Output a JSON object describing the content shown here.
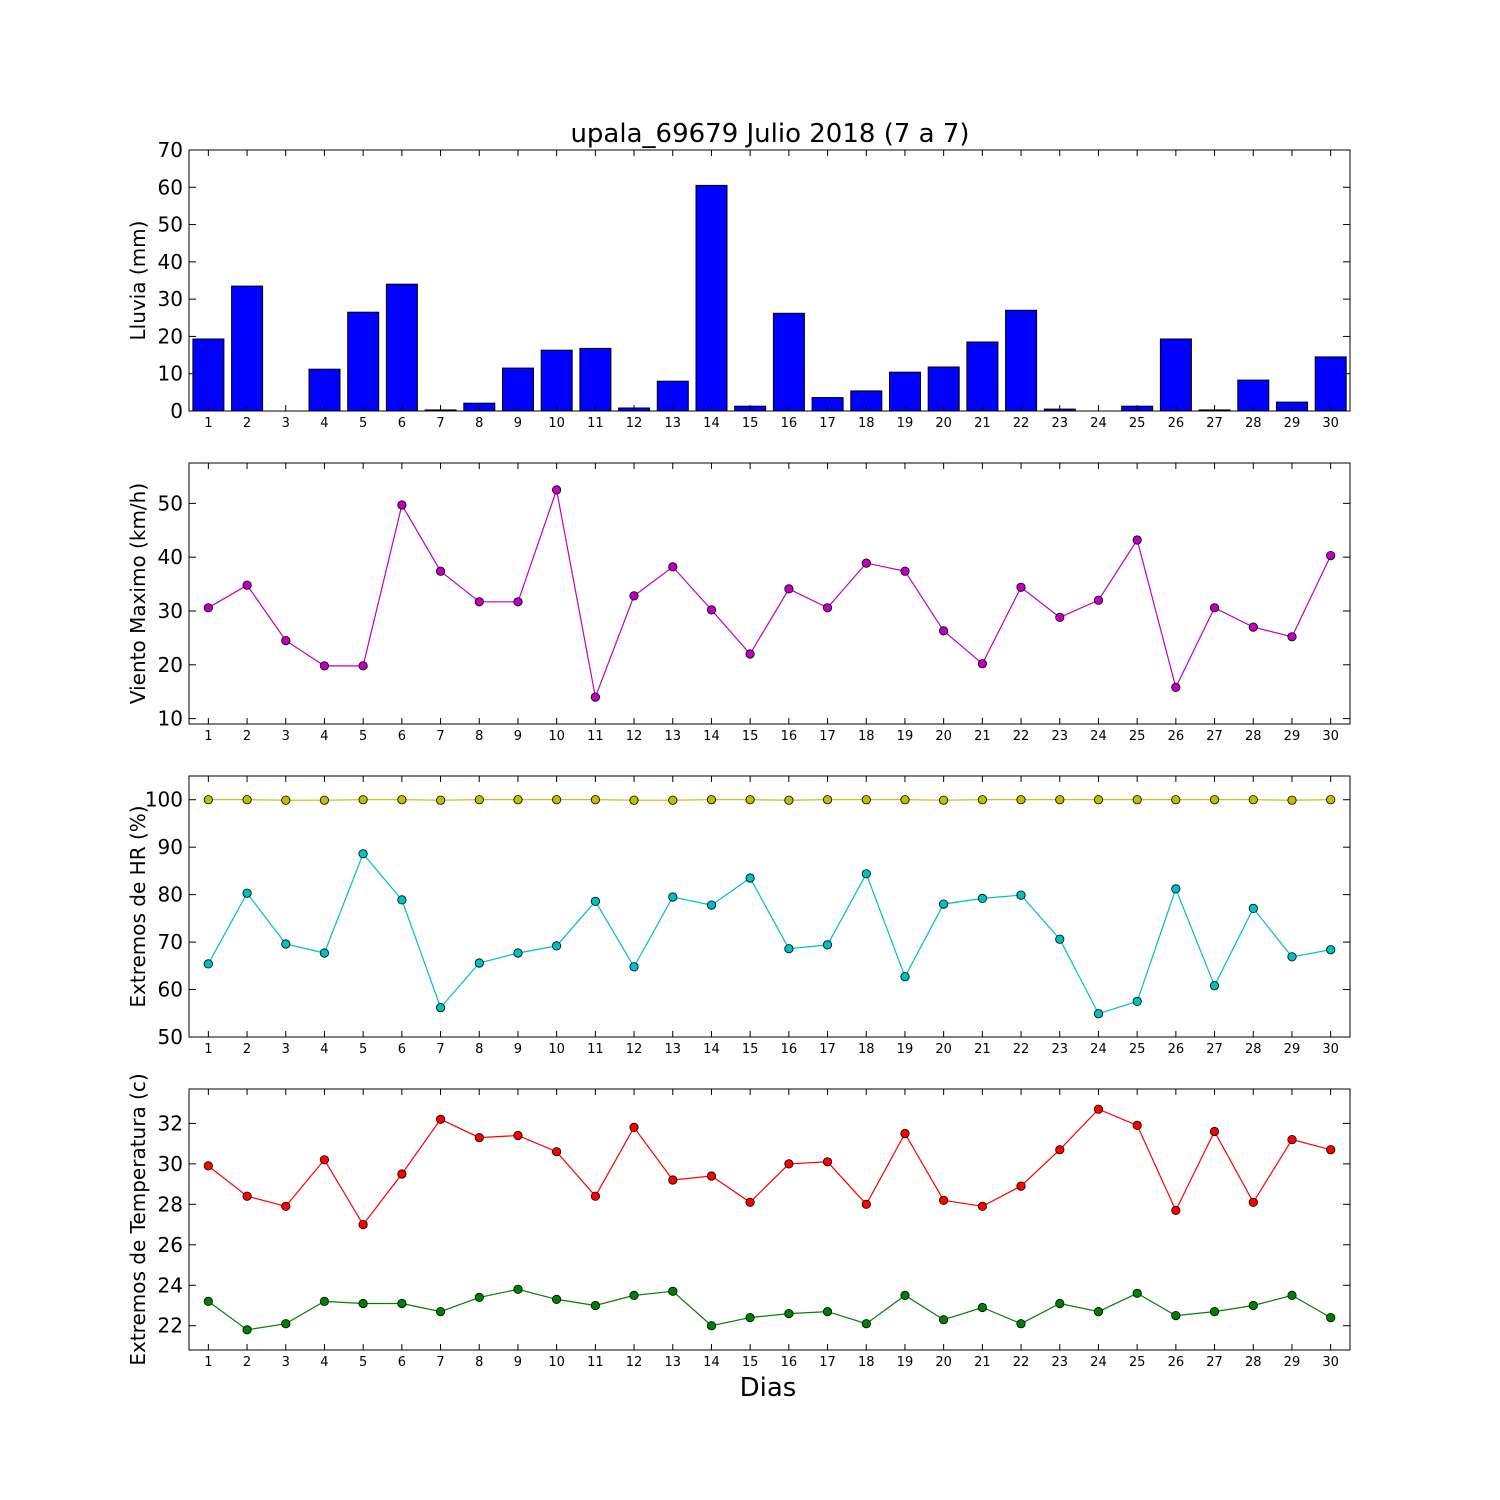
{
  "title": "upala_69679 Julio 2018  (7 a 7)",
  "xlabel": "Dias",
  "colors": {
    "rain": "#0000ff",
    "wind": "#bf00bf",
    "rh_max": "#bfbf00",
    "rh_min": "#00bfbf",
    "t_max": "#ff0000",
    "t_min": "#007f00"
  },
  "chart_data": [
    {
      "type": "bar",
      "ylabel": "Lluvia (mm)",
      "ylim": [
        0,
        70
      ],
      "yticks": [
        0,
        10,
        20,
        30,
        40,
        50,
        60,
        70
      ],
      "x": [
        1,
        2,
        3,
        4,
        5,
        6,
        7,
        8,
        9,
        10,
        11,
        12,
        13,
        14,
        15,
        16,
        17,
        18,
        19,
        20,
        21,
        22,
        23,
        24,
        25,
        26,
        27,
        28,
        29,
        30
      ],
      "series": [
        {
          "color": "rain",
          "values": [
            19.3,
            33.5,
            0,
            11.2,
            26.5,
            34.0,
            0.3,
            2.1,
            11.5,
            16.3,
            16.8,
            0.8,
            8.0,
            60.5,
            1.3,
            26.2,
            3.6,
            5.4,
            10.4,
            11.8,
            18.5,
            27.0,
            0.5,
            0,
            1.3,
            19.3,
            0.3,
            8.3,
            2.4,
            14.5
          ]
        }
      ]
    },
    {
      "type": "line",
      "ylabel": "Viento Maximo (km/h)",
      "ylim": [
        9,
        57.5
      ],
      "yticks": [
        10,
        20,
        30,
        40,
        50
      ],
      "x": [
        1,
        2,
        3,
        4,
        5,
        6,
        7,
        8,
        9,
        10,
        11,
        12,
        13,
        14,
        15,
        16,
        17,
        18,
        19,
        20,
        21,
        22,
        23,
        24,
        25,
        26,
        27,
        28,
        29,
        30
      ],
      "series": [
        {
          "color": "wind",
          "values": [
            30.6,
            34.8,
            24.5,
            19.8,
            19.8,
            49.7,
            37.4,
            31.7,
            31.7,
            52.5,
            14.0,
            32.8,
            38.2,
            30.2,
            22.0,
            34.1,
            30.6,
            38.9,
            37.4,
            26.3,
            20.2,
            34.4,
            28.8,
            32.0,
            43.2,
            15.8,
            30.6,
            27.0,
            25.2,
            40.3
          ]
        }
      ]
    },
    {
      "type": "line",
      "ylabel": "Extremos de HR (%)",
      "ylim": [
        50,
        105
      ],
      "yticks": [
        50,
        60,
        70,
        80,
        90,
        100
      ],
      "x": [
        1,
        2,
        3,
        4,
        5,
        6,
        7,
        8,
        9,
        10,
        11,
        12,
        13,
        14,
        15,
        16,
        17,
        18,
        19,
        20,
        21,
        22,
        23,
        24,
        25,
        26,
        27,
        28,
        29,
        30
      ],
      "series": [
        {
          "color": "rh_max",
          "values": [
            100,
            100,
            99.9,
            99.9,
            100,
            100,
            99.9,
            100,
            100,
            100,
            100,
            99.9,
            99.9,
            100,
            100,
            99.9,
            100,
            100,
            100,
            99.9,
            100,
            100,
            100,
            100,
            100,
            100,
            100,
            100,
            99.9,
            100
          ]
        },
        {
          "color": "rh_min",
          "values": [
            65.4,
            80.3,
            69.6,
            67.7,
            88.6,
            78.9,
            56.2,
            65.6,
            67.7,
            69.2,
            78.6,
            64.8,
            79.5,
            77.8,
            83.5,
            68.6,
            69.4,
            84.4,
            62.7,
            78.0,
            79.2,
            79.9,
            70.6,
            54.9,
            57.5,
            81.2,
            60.8,
            77.1,
            66.9,
            68.4
          ]
        }
      ]
    },
    {
      "type": "line",
      "ylabel": "Extremos de Temperatura (c)",
      "ylim": [
        20.8,
        33.7
      ],
      "yticks": [
        22,
        24,
        26,
        28,
        30,
        32
      ],
      "x": [
        1,
        2,
        3,
        4,
        5,
        6,
        7,
        8,
        9,
        10,
        11,
        12,
        13,
        14,
        15,
        16,
        17,
        18,
        19,
        20,
        21,
        22,
        23,
        24,
        25,
        26,
        27,
        28,
        29,
        30
      ],
      "series": [
        {
          "color": "t_max",
          "values": [
            29.9,
            28.4,
            27.9,
            30.2,
            27.0,
            29.5,
            32.2,
            31.3,
            31.4,
            30.6,
            28.4,
            31.8,
            29.2,
            29.4,
            28.1,
            30.0,
            30.1,
            28.0,
            31.5,
            28.2,
            27.9,
            28.9,
            30.7,
            32.7,
            31.9,
            27.7,
            31.6,
            28.1,
            31.2,
            30.7
          ]
        },
        {
          "color": "t_min",
          "values": [
            23.2,
            21.8,
            22.1,
            23.2,
            23.1,
            23.1,
            22.7,
            23.4,
            23.8,
            23.3,
            23.0,
            23.5,
            23.7,
            22.0,
            22.4,
            22.6,
            22.7,
            22.1,
            23.5,
            22.3,
            22.9,
            22.1,
            23.1,
            22.7,
            23.6,
            22.5,
            22.7,
            23.0,
            23.5,
            22.4
          ]
        }
      ]
    }
  ]
}
